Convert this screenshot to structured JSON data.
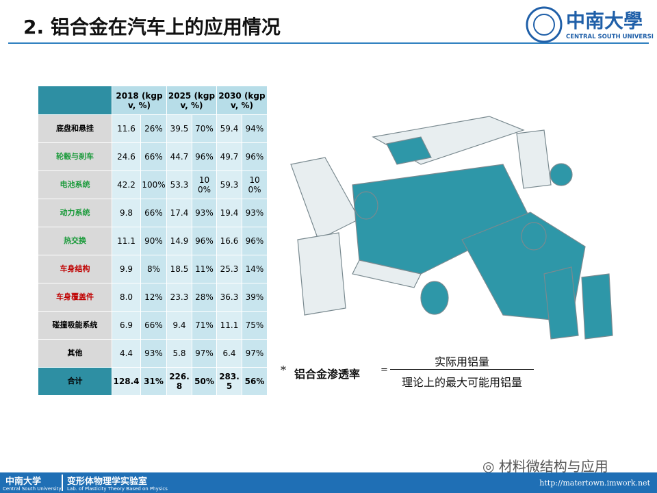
{
  "title": "2. 铝合金在汽车上的应用情况",
  "logo": {
    "name": "中南大學",
    "subtitle": "CENTRAL SOUTH UNIVERSITY"
  },
  "table": {
    "columns": [
      "2018 (kgpv, %)",
      "2025 (kgpv, %)",
      "2030 (kgpv, %)"
    ],
    "rows": [
      {
        "label": "底盘和悬挂",
        "values": [
          "11.6",
          "26%",
          "39.5",
          "70%",
          "59.4",
          "94%"
        ]
      },
      {
        "label": "轮毂与刹车",
        "values": [
          "24.6",
          "66%",
          "44.7",
          "96%",
          "49.7",
          "96%"
        ]
      },
      {
        "label": "电池系统",
        "values": [
          "42.2",
          "100%",
          "53.3",
          "100%",
          "59.3",
          "100%"
        ]
      },
      {
        "label": "动力系统",
        "values": [
          "9.8",
          "66%",
          "17.4",
          "93%",
          "19.4",
          "93%"
        ]
      },
      {
        "label": "热交换",
        "values": [
          "11.1",
          "90%",
          "14.9",
          "96%",
          "16.6",
          "96%"
        ]
      },
      {
        "label": "车身结构",
        "values": [
          "9.9",
          "8%",
          "18.5",
          "11%",
          "25.3",
          "14%"
        ]
      },
      {
        "label": "车身覆盖件",
        "values": [
          "8.0",
          "12%",
          "23.3",
          "28%",
          "36.3",
          "39%"
        ]
      },
      {
        "label": "碰撞吸能系统",
        "values": [
          "6.9",
          "66%",
          "9.4",
          "71%",
          "11.1",
          "75%"
        ]
      },
      {
        "label": "其他",
        "values": [
          "4.4",
          "93%",
          "5.8",
          "97%",
          "6.4",
          "97%"
        ]
      }
    ],
    "total": {
      "label": "合计",
      "values": [
        "128.4",
        "31%",
        "226.8",
        "50%",
        "283.5",
        "56%"
      ]
    }
  },
  "formula": {
    "star": "*",
    "term": "铝合金渗透率",
    "equals": "=",
    "numerator": "实际用铝量",
    "denominator": "理论上的最大可能用铝量"
  },
  "watermark": "材料微结构与应用",
  "footer": {
    "university": "中南大学",
    "university_en": "Central South University",
    "lab": "变形体物理学实验室",
    "lab_en": "Lab. of Plasticity Theory Based on Physics",
    "url": "http://matertown.imwork.net"
  }
}
